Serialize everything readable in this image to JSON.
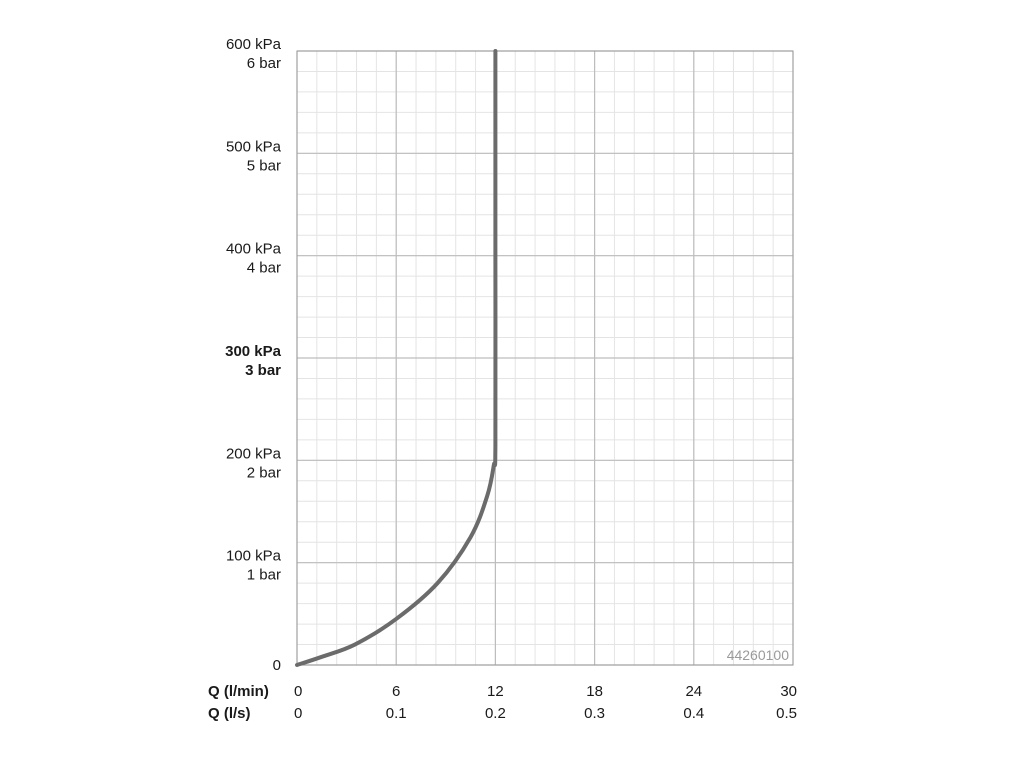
{
  "chart_data": {
    "type": "line",
    "title": "",
    "code_label": "44260100",
    "x_axis": {
      "primary_label": "Q (l/min)",
      "secondary_label": "Q (l/s)",
      "primary_ticks": [
        "0",
        "6",
        "12",
        "18",
        "24",
        "30"
      ],
      "secondary_ticks": [
        "0",
        "0.1",
        "0.2",
        "0.3",
        "0.4",
        "0.5"
      ],
      "range": [
        0,
        30
      ]
    },
    "y_axis": {
      "ticks": [
        {
          "value": 0,
          "kpa": "0",
          "bar": "",
          "bold": false
        },
        {
          "value": 100,
          "kpa": "100 kPa",
          "bar": "1 bar",
          "bold": false
        },
        {
          "value": 200,
          "kpa": "200 kPa",
          "bar": "2 bar",
          "bold": false
        },
        {
          "value": 300,
          "kpa": "300 kPa",
          "bar": "3 bar",
          "bold": true
        },
        {
          "value": 400,
          "kpa": "400 kPa",
          "bar": "4 bar",
          "bold": false
        },
        {
          "value": 500,
          "kpa": "500 kPa",
          "bar": "5 bar",
          "bold": false
        },
        {
          "value": 600,
          "kpa": "600 kPa",
          "bar": "6 bar",
          "bold": false
        }
      ],
      "range": [
        0,
        600
      ],
      "unit": "kPa"
    },
    "grid": true,
    "series": [
      {
        "color": "#6b6b6b",
        "x": [
          0,
          1.5,
          3.5,
          6,
          8.5,
          10.5,
          11.5,
          11.9,
          12,
          12,
          12
        ],
        "y": [
          0,
          8,
          20,
          45,
          80,
          125,
          165,
          195,
          215,
          400,
          600
        ]
      }
    ]
  }
}
